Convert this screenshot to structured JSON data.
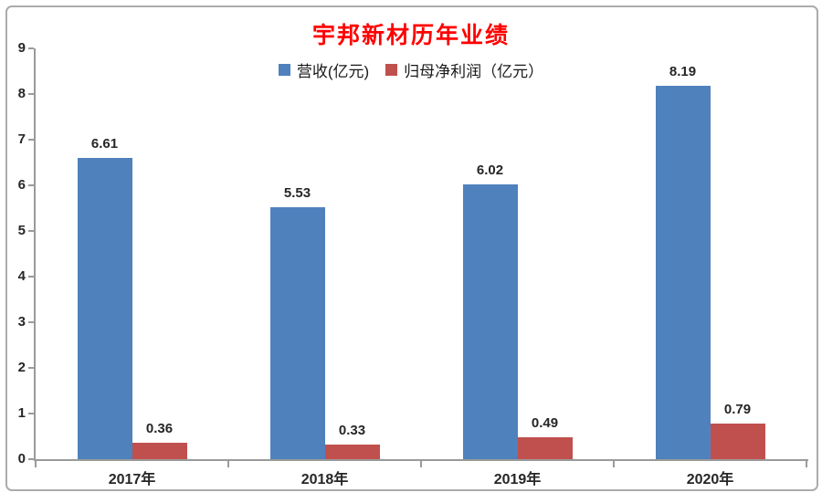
{
  "page": {
    "background_color": "#ffffff",
    "frame_border_color": "#ababab",
    "axis_color": "#9a9a9a",
    "text_color": "#262626"
  },
  "chart_data": {
    "type": "bar",
    "title": "宇邦新材历年业绩",
    "title_color": "#ff0000",
    "categories": [
      "2017年",
      "2018年",
      "2019年",
      "2020年"
    ],
    "series": [
      {
        "name": "营收(亿元)",
        "color": "#4f81bd",
        "values": [
          6.61,
          5.53,
          6.02,
          8.19
        ]
      },
      {
        "name": "归母净利润（亿元）",
        "color": "#c0504d",
        "values": [
          0.36,
          0.33,
          0.49,
          0.79
        ]
      }
    ],
    "value_labels": [
      [
        "6.61",
        "5.53",
        "6.02",
        "8.19"
      ],
      [
        "0.36",
        "0.33",
        "0.49",
        "0.79"
      ]
    ],
    "ylim": [
      0,
      9
    ],
    "yticks": [
      0,
      1,
      2,
      3,
      4,
      5,
      6,
      7,
      8,
      9
    ],
    "xlabel": "",
    "ylabel": "",
    "grid": false,
    "legend_position": "top"
  }
}
